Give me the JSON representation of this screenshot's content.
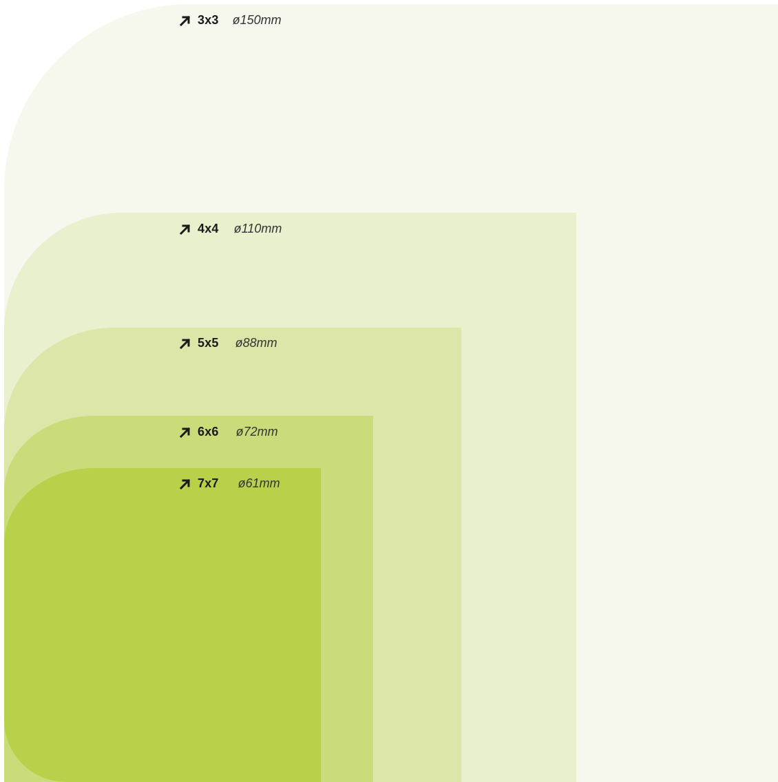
{
  "colors": {
    "panel_3x3": "#f6f8ee",
    "panel_4x4": "#e8f0cd",
    "panel_5x5": "#dbe6a8",
    "panel_6x6": "#cadc7a",
    "panel_7x7": "#b8d14b",
    "text": "#1a1a1a"
  },
  "icon": "arrow-up-right-icon",
  "sizes": [
    {
      "grid": "3x3",
      "diameter": "ø150mm"
    },
    {
      "grid": "4x4",
      "diameter": "ø110mm"
    },
    {
      "grid": "5x5",
      "diameter": "ø88mm"
    },
    {
      "grid": "6x6",
      "diameter": "ø72mm"
    },
    {
      "grid": "7x7",
      "diameter": "ø61mm"
    }
  ]
}
